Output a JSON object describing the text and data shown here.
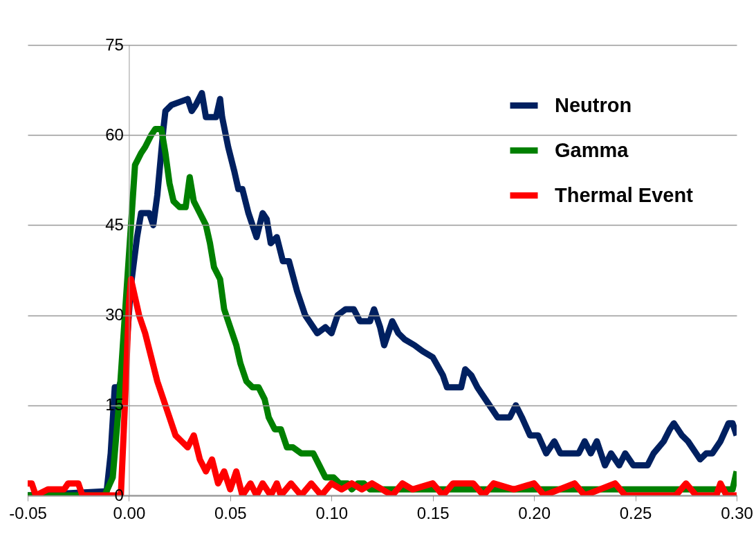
{
  "chart_data": {
    "type": "line",
    "xlim": [
      -0.05,
      0.3
    ],
    "ylim": [
      0,
      75
    ],
    "xticks": [
      {
        "value": -0.05,
        "label": "-0.05"
      },
      {
        "value": 0,
        "label": "0.00"
      },
      {
        "value": 0.05,
        "label": "0.05"
      },
      {
        "value": 0.1,
        "label": "0.10"
      },
      {
        "value": 0.15,
        "label": "0.15"
      },
      {
        "value": 0.2,
        "label": "0.20"
      },
      {
        "value": 0.25,
        "label": "0.25"
      },
      {
        "value": 0.3,
        "label": "0.30"
      }
    ],
    "yticks": [
      0,
      15,
      30,
      45,
      60,
      75
    ],
    "grid": "y",
    "legend": "top right",
    "marker": "none",
    "line_style": "solid",
    "series": [
      {
        "name": "Neutron",
        "color": "#002060",
        "x": [
          -0.05,
          -0.011,
          -0.009,
          -0.007,
          -0.005,
          -0.002,
          0.001,
          0.004,
          0.006,
          0.01,
          0.012,
          0.014,
          0.017,
          0.018,
          0.021,
          0.029,
          0.031,
          0.033,
          0.036,
          0.038,
          0.043,
          0.045,
          0.046,
          0.049,
          0.052,
          0.054,
          0.056,
          0.059,
          0.063,
          0.066,
          0.068,
          0.07,
          0.073,
          0.076,
          0.079,
          0.083,
          0.087,
          0.093,
          0.097,
          0.1,
          0.103,
          0.107,
          0.111,
          0.114,
          0.119,
          0.121,
          0.124,
          0.126,
          0.13,
          0.133,
          0.136,
          0.141,
          0.145,
          0.15,
          0.155,
          0.157,
          0.164,
          0.166,
          0.169,
          0.172,
          0.176,
          0.182,
          0.188,
          0.191,
          0.194,
          0.198,
          0.202,
          0.206,
          0.21,
          0.213,
          0.222,
          0.225,
          0.228,
          0.231,
          0.235,
          0.238,
          0.242,
          0.245,
          0.249,
          0.256,
          0.259,
          0.264,
          0.267,
          0.269,
          0.273,
          0.276,
          0.28,
          0.282,
          0.285,
          0.288,
          0.292,
          0.296,
          0.298,
          0.3
        ],
        "values": [
          0,
          0.7,
          7,
          18,
          18,
          21,
          35,
          43,
          47,
          47,
          45,
          50,
          61,
          64,
          65,
          66,
          64,
          65,
          67,
          63,
          63,
          66,
          63,
          58,
          54,
          51,
          51,
          47,
          43,
          47,
          46,
          42,
          43,
          39,
          39,
          34,
          30,
          27,
          28,
          27,
          30,
          31,
          31,
          29,
          29,
          31,
          28,
          25,
          29,
          27,
          26,
          25,
          24,
          23,
          20,
          18,
          18,
          21,
          20,
          18,
          16,
          13,
          13,
          15,
          13,
          10,
          10,
          7,
          9,
          7,
          7,
          9,
          7,
          9,
          5,
          7,
          5,
          7,
          5,
          5,
          7,
          9,
          11,
          12,
          10,
          9,
          7,
          6,
          7,
          7,
          9,
          12,
          12,
          10
        ]
      },
      {
        "name": "Gamma",
        "color": "#008000",
        "x": [
          -0.05,
          -0.012,
          -0.008,
          -0.005,
          -0.002,
          0.001,
          0.003,
          0.006,
          0.008,
          0.011,
          0.013,
          0.016,
          0.018,
          0.02,
          0.022,
          0.025,
          0.028,
          0.03,
          0.032,
          0.035,
          0.038,
          0.04,
          0.042,
          0.045,
          0.047,
          0.05,
          0.053,
          0.055,
          0.058,
          0.061,
          0.064,
          0.067,
          0.069,
          0.072,
          0.075,
          0.078,
          0.081,
          0.085,
          0.091,
          0.094,
          0.097,
          0.101,
          0.104,
          0.108,
          0.11,
          0.113,
          0.116,
          0.119,
          0.123,
          0.13,
          0.15,
          0.2,
          0.25,
          0.29,
          0.298,
          0.3
        ],
        "values": [
          0,
          0,
          3,
          15,
          30,
          45,
          55,
          57,
          58,
          60,
          61,
          61,
          57,
          52,
          49,
          48,
          48,
          53,
          49,
          47,
          45,
          42,
          38,
          36,
          31,
          28,
          25,
          22,
          19,
          18,
          18,
          16,
          13,
          11,
          11,
          8,
          8,
          7,
          7,
          5,
          3,
          3,
          2,
          2,
          1,
          2,
          2,
          1,
          1,
          1,
          1,
          1,
          1,
          1,
          1,
          4
        ]
      },
      {
        "name": "Thermal Event",
        "color": "#ff0000",
        "x": [
          -0.05,
          -0.048,
          -0.046,
          -0.04,
          -0.032,
          -0.03,
          -0.025,
          -0.023,
          -0.012,
          -0.004,
          -0.002,
          0.0,
          0.001,
          0.003,
          0.005,
          0.008,
          0.011,
          0.014,
          0.017,
          0.02,
          0.023,
          0.026,
          0.029,
          0.032,
          0.035,
          0.038,
          0.041,
          0.044,
          0.047,
          0.05,
          0.053,
          0.056,
          0.06,
          0.063,
          0.066,
          0.07,
          0.073,
          0.075,
          0.08,
          0.085,
          0.09,
          0.095,
          0.1,
          0.105,
          0.11,
          0.115,
          0.12,
          0.13,
          0.135,
          0.14,
          0.15,
          0.155,
          0.16,
          0.17,
          0.175,
          0.18,
          0.19,
          0.2,
          0.205,
          0.22,
          0.225,
          0.24,
          0.245,
          0.27,
          0.275,
          0.28,
          0.29,
          0.292,
          0.295,
          0.3
        ],
        "values": [
          2,
          2,
          0,
          1,
          1,
          2,
          2,
          0,
          0,
          0,
          15,
          32,
          36,
          33,
          30,
          27,
          23,
          19,
          16,
          13,
          10,
          9,
          8,
          10,
          6,
          4,
          6,
          2,
          4,
          1,
          4,
          0,
          2,
          0,
          2,
          0,
          2,
          0,
          2,
          0,
          2,
          0,
          2,
          1,
          2,
          1,
          2,
          0,
          2,
          1,
          2,
          0,
          2,
          2,
          0,
          2,
          1,
          2,
          0,
          2,
          0,
          2,
          0,
          0,
          2,
          0,
          0,
          2,
          0,
          0
        ]
      }
    ]
  }
}
